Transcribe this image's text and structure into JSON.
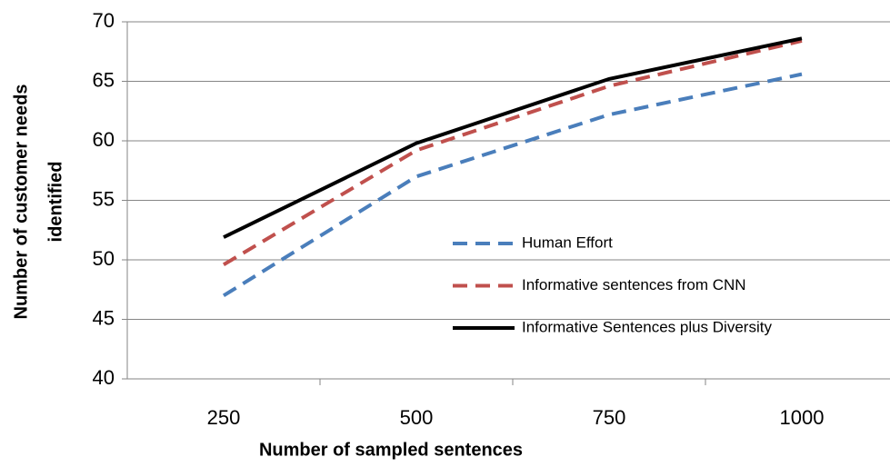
{
  "chart_data": {
    "type": "line",
    "xlabel": "Number of sampled sentences",
    "ylabel": [
      "Number of customer needs",
      "identified"
    ],
    "categories": [
      "250",
      "500",
      "750",
      "1000"
    ],
    "series": [
      {
        "name": "Human Effort",
        "color": "#4a7ebb",
        "style": "dashed",
        "values": [
          47,
          57,
          62.2,
          65.6
        ]
      },
      {
        "name": "Informative sentences from CNN",
        "color": "#c0504d",
        "style": "dashed",
        "values": [
          49.6,
          59.2,
          64.6,
          68.4
        ]
      },
      {
        "name": "Informative Sentences plus Diversity",
        "color": "#000000",
        "style": "solid",
        "values": [
          51.9,
          59.8,
          65.2,
          68.6
        ]
      }
    ],
    "ylim": [
      40,
      70
    ],
    "yticks": [
      40,
      45,
      50,
      55,
      60,
      65,
      70
    ],
    "grid": true,
    "legend": "center"
  }
}
